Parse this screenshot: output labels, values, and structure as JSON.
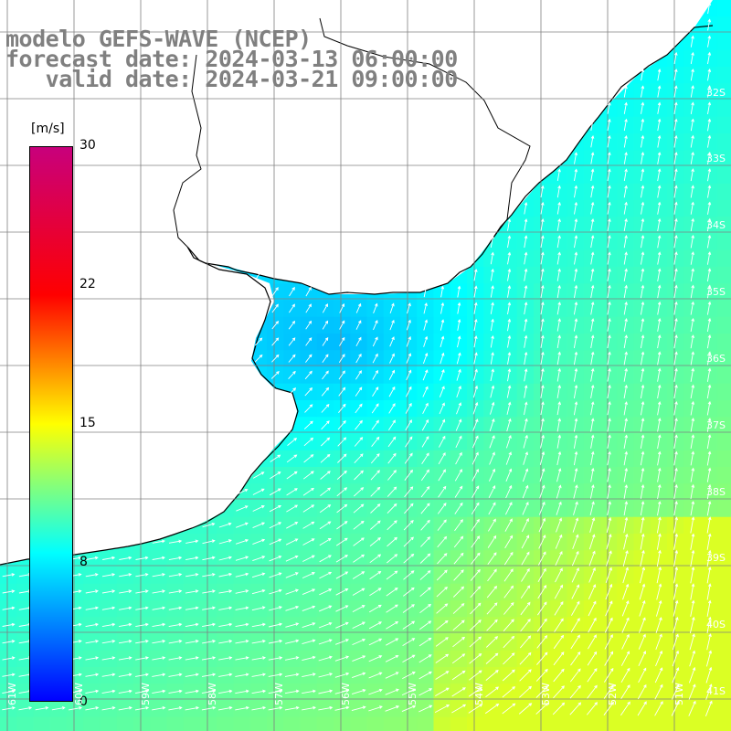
{
  "title": {
    "line1": "modelo GEFS-WAVE (NCEP)",
    "line2": "forecast date: 2024-03-13 06:00:00",
    "line3": "   valid date: 2024-03-21 09:00:00"
  },
  "colorbar": {
    "unit": "[m/s]",
    "ticks": [
      "30",
      "22",
      "15",
      "8",
      "0"
    ],
    "stops": [
      {
        "value": 0,
        "color": "#0000ff"
      },
      {
        "value": 8,
        "color": "#00ffff"
      },
      {
        "value": 15,
        "color": "#ffff00"
      },
      {
        "value": 22,
        "color": "#ff0000"
      },
      {
        "value": 30,
        "color": "#c8007c"
      }
    ]
  },
  "lat_labels": [
    "32S",
    "33S",
    "34S",
    "35S",
    "36S",
    "37S",
    "38S",
    "39S",
    "40S",
    "41S"
  ],
  "lon_labels": [
    "61W",
    "60W",
    "59W",
    "58W",
    "57W",
    "56W",
    "55W",
    "54W",
    "53W",
    "52W",
    "51W"
  ],
  "colors": {
    "land": "#ffffff",
    "coast": "#000000",
    "grid": "#808080",
    "arrow": "#ffffff",
    "title": "#808080"
  }
}
